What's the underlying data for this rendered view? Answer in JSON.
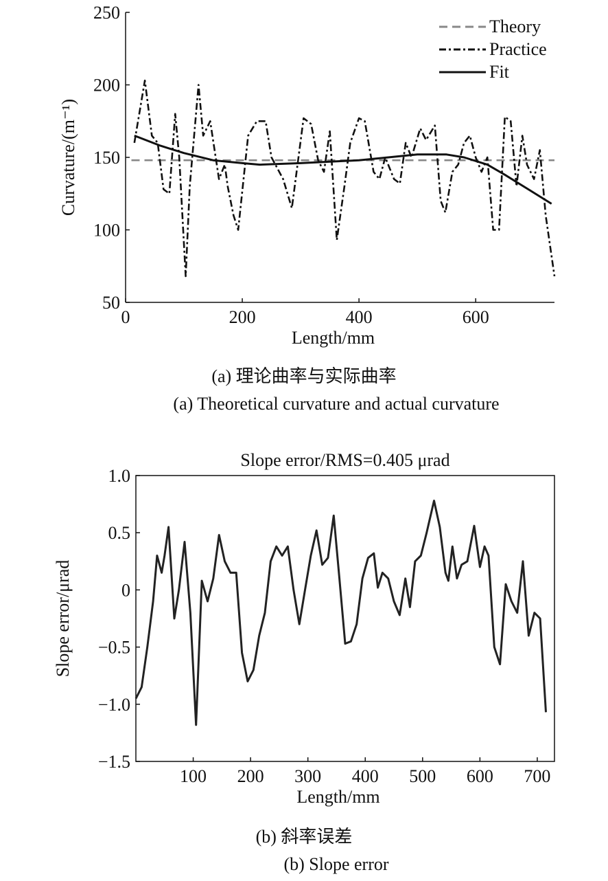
{
  "chart_data": [
    {
      "type": "line",
      "title": "",
      "xlabel": "Length/mm",
      "ylabel": "Curvature/(m⁻¹)",
      "xlim": [
        0,
        735
      ],
      "ylim": [
        50,
        250
      ],
      "xticks": [
        0,
        200,
        400,
        600
      ],
      "yticks": [
        50,
        100,
        150,
        200,
        250
      ],
      "legend_position": "top-right",
      "caption_cn": "(a) 理论曲率与实际曲率",
      "caption_en": "(a) Theoretical curvature and actual curvature",
      "series": [
        {
          "name": "Theory",
          "style": "dashed",
          "color": "#888888",
          "x": [
            10,
            735
          ],
          "y": [
            148,
            148
          ]
        },
        {
          "name": "Practice",
          "style": "dashdot",
          "color": "#111111",
          "x": [
            15,
            33,
            45,
            55,
            65,
            75,
            85,
            92,
            103,
            110,
            125,
            133,
            145,
            160,
            170,
            175,
            185,
            193,
            210,
            225,
            240,
            250,
            270,
            285,
            305,
            318,
            330,
            340,
            350,
            362,
            375,
            385,
            400,
            410,
            425,
            435,
            445,
            460,
            470,
            480,
            490,
            505,
            515,
            530,
            540,
            548,
            560,
            570,
            580,
            590,
            600,
            610,
            620,
            630,
            640,
            650,
            660,
            670,
            680,
            688,
            700,
            710,
            720,
            735
          ],
          "y": [
            160,
            203,
            165,
            160,
            128,
            125,
            180,
            150,
            68,
            130,
            200,
            165,
            175,
            135,
            145,
            130,
            110,
            100,
            165,
            175,
            175,
            150,
            135,
            115,
            177,
            173,
            148,
            140,
            168,
            93,
            130,
            160,
            177,
            175,
            140,
            135,
            150,
            135,
            132,
            160,
            150,
            170,
            162,
            172,
            120,
            112,
            140,
            145,
            160,
            165,
            150,
            140,
            150,
            100,
            100,
            178,
            175,
            130,
            165,
            145,
            135,
            155,
            110,
            68
          ]
        },
        {
          "name": "Fit",
          "style": "solid",
          "color": "#111111",
          "x": [
            15,
            60,
            100,
            150,
            200,
            230,
            300,
            350,
            400,
            450,
            500,
            550,
            580,
            620,
            650,
            690,
            730
          ],
          "y": [
            165,
            158,
            153,
            148,
            146,
            145,
            146,
            147,
            148,
            150,
            152,
            152,
            150,
            145,
            138,
            128,
            118
          ]
        }
      ]
    },
    {
      "type": "line",
      "title": "Slope error/RMS=0.405 μrad",
      "xlabel": "Length/mm",
      "ylabel": "Slope error/μrad",
      "xlim": [
        0,
        730
      ],
      "ylim": [
        -1.5,
        1.0
      ],
      "xticks": [
        100,
        200,
        300,
        400,
        500,
        600,
        700
      ],
      "yticks": [
        -1.5,
        -1.0,
        -0.5,
        0,
        0.5,
        1.0
      ],
      "ytick_labels": [
        "−1.5",
        "−1.0",
        "−0.5",
        "0",
        "0.5",
        "1.0"
      ],
      "caption_cn": "(b) 斜率误差",
      "caption_en": "(b) Slope error",
      "series": [
        {
          "name": "Slope error",
          "style": "solid",
          "color": "#222222",
          "x": [
            0,
            10,
            20,
            30,
            37,
            45,
            50,
            57,
            67,
            75,
            85,
            95,
            105,
            115,
            125,
            135,
            145,
            155,
            165,
            175,
            185,
            195,
            205,
            215,
            225,
            235,
            245,
            255,
            265,
            275,
            285,
            295,
            305,
            315,
            325,
            335,
            345,
            355,
            365,
            375,
            385,
            395,
            405,
            415,
            422,
            430,
            440,
            450,
            460,
            470,
            478,
            487,
            497,
            507,
            520,
            530,
            540,
            545,
            552,
            560,
            568,
            578,
            590,
            600,
            608,
            615,
            625,
            635,
            645,
            655,
            665,
            675,
            685,
            695,
            705,
            715
          ],
          "y": [
            -0.95,
            -0.85,
            -0.5,
            -0.1,
            0.3,
            0.15,
            0.3,
            0.55,
            -0.25,
            0,
            0.42,
            -0.2,
            -1.18,
            0.08,
            -0.1,
            0.1,
            0.48,
            0.25,
            0.15,
            0.15,
            -0.55,
            -0.8,
            -0.7,
            -0.4,
            -0.2,
            0.25,
            0.38,
            0.3,
            0.38,
            0,
            -0.3,
            0,
            0.3,
            0.52,
            0.22,
            0.28,
            0.65,
            0.1,
            -0.47,
            -0.45,
            -0.3,
            0.1,
            0.28,
            0.32,
            0.02,
            0.15,
            0.1,
            -0.1,
            -0.22,
            0.1,
            -0.15,
            0.25,
            0.3,
            0.5,
            0.78,
            0.55,
            0.15,
            0.08,
            0.38,
            0.1,
            0.22,
            0.25,
            0.56,
            0.2,
            0.38,
            0.3,
            -0.5,
            -0.65,
            0.05,
            -0.1,
            -0.2,
            0.25,
            -0.4,
            -0.2,
            -0.25,
            -1.07
          ]
        }
      ]
    }
  ]
}
